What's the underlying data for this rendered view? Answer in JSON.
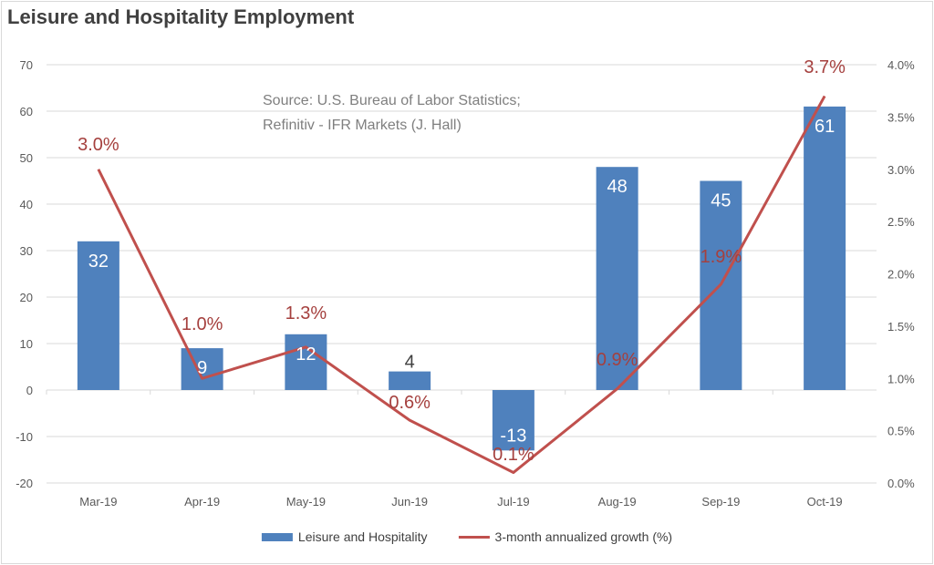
{
  "chart_data": {
    "type": "bar+line",
    "title": "Leisure and Hospitality Employment",
    "annotation": [
      "Source: U.S. Bureau of Labor Statistics;",
      "Refinitiv - IFR Markets (J. Hall)"
    ],
    "categories": [
      "Mar-19",
      "Apr-19",
      "May-19",
      "Jun-19",
      "Jul-19",
      "Aug-19",
      "Sep-19",
      "Oct-19"
    ],
    "series": [
      {
        "name": "Leisure and Hospitality",
        "type": "bar",
        "axis": "left",
        "color": "#4f81bd",
        "values": [
          32,
          9,
          12,
          4,
          -13,
          48,
          45,
          61
        ],
        "labels": [
          "32",
          "9",
          "12",
          "4",
          "-13",
          "48",
          "45",
          "61"
        ]
      },
      {
        "name": "3-month annualized growth (%)",
        "type": "line",
        "axis": "right",
        "color": "#c0504d",
        "values": [
          3.0,
          1.0,
          1.3,
          0.6,
          0.1,
          0.9,
          1.9,
          3.7
        ],
        "labels": [
          "3.0%",
          "1.0%",
          "1.3%",
          "0.6%",
          "0.1%",
          "0.9%",
          "1.9%",
          "3.7%"
        ]
      }
    ],
    "ylim": [
      -20,
      70
    ],
    "yticks": [
      "-20",
      "-10",
      "0",
      "10",
      "20",
      "30",
      "40",
      "50",
      "60",
      "70"
    ],
    "y2lim": [
      0,
      4
    ],
    "y2ticks": [
      "0.0%",
      "0.5%",
      "1.0%",
      "1.5%",
      "2.0%",
      "2.5%",
      "3.0%",
      "3.5%",
      "4.0%"
    ],
    "grid": true,
    "legend_position": "bottom"
  }
}
